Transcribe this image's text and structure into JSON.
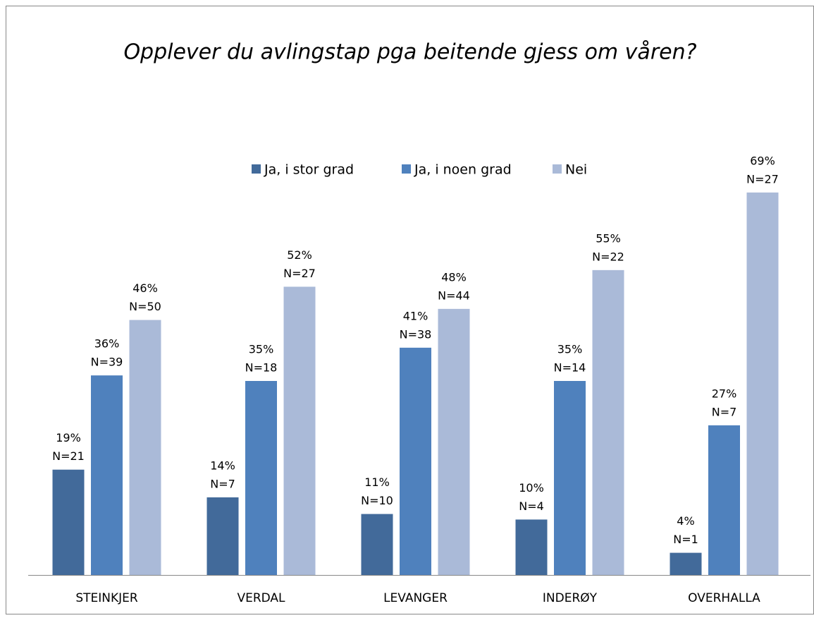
{
  "chart_data": {
    "type": "bar",
    "title": "Opplever du avlingstap pga beitende gjess om våren?",
    "categories": [
      "STEINKJER",
      "VERDAL",
      "LEVANGER",
      "INDERØY",
      "OVERHALLA"
    ],
    "ylim": [
      0,
      70
    ],
    "series": [
      {
        "name": "Ja, i stor grad",
        "color": "#426a9a",
        "values": [
          19,
          14,
          11,
          10,
          4
        ],
        "value_labels": [
          "19%",
          "14%",
          "11%",
          "10%",
          "4%"
        ],
        "n_labels": [
          "N=21",
          "N=7",
          "N=10",
          "N=4",
          "N=1"
        ]
      },
      {
        "name": "Ja, i noen grad",
        "color": "#4f81bd",
        "values": [
          36,
          35,
          41,
          35,
          27
        ],
        "value_labels": [
          "36%",
          "35%",
          "41%",
          "35%",
          "27%"
        ],
        "n_labels": [
          "N=39",
          "N=18",
          "N=38",
          "N=14",
          "N=7"
        ]
      },
      {
        "name": "Nei",
        "color": "#aabad8",
        "values": [
          46,
          52,
          48,
          55,
          69
        ],
        "value_labels": [
          "46%",
          "52%",
          "48%",
          "55%",
          "69%"
        ],
        "n_labels": [
          "N=50",
          "N=27",
          "N=44",
          "N=22",
          "N=27"
        ]
      }
    ],
    "legend": "top"
  }
}
